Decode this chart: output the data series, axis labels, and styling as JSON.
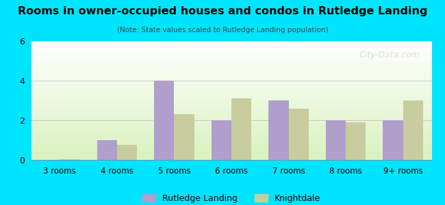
{
  "title": "Rooms in owner-occupied houses and condos in Rutledge Landing",
  "subtitle": "(Note: State values scaled to Rutledge Landing population)",
  "categories": [
    "3 rooms",
    "4 rooms",
    "5 rooms",
    "6 rooms",
    "7 rooms",
    "8 rooms",
    "9+ rooms"
  ],
  "rutledge_values": [
    0.0,
    1.0,
    4.0,
    2.0,
    3.0,
    2.0,
    2.0
  ],
  "knightdale_values": [
    0.05,
    0.75,
    2.3,
    3.1,
    2.6,
    1.9,
    3.0
  ],
  "rutledge_color": "#b09fcc",
  "knightdale_color": "#c8cc9f",
  "background_outer": "#00e5ff",
  "ylim": [
    0,
    6
  ],
  "yticks": [
    0,
    2,
    4,
    6
  ],
  "bar_width": 0.35,
  "legend_rutledge": "Rutledge Landing",
  "legend_knightdale": "Knightdale",
  "watermark": "City-Data.com"
}
